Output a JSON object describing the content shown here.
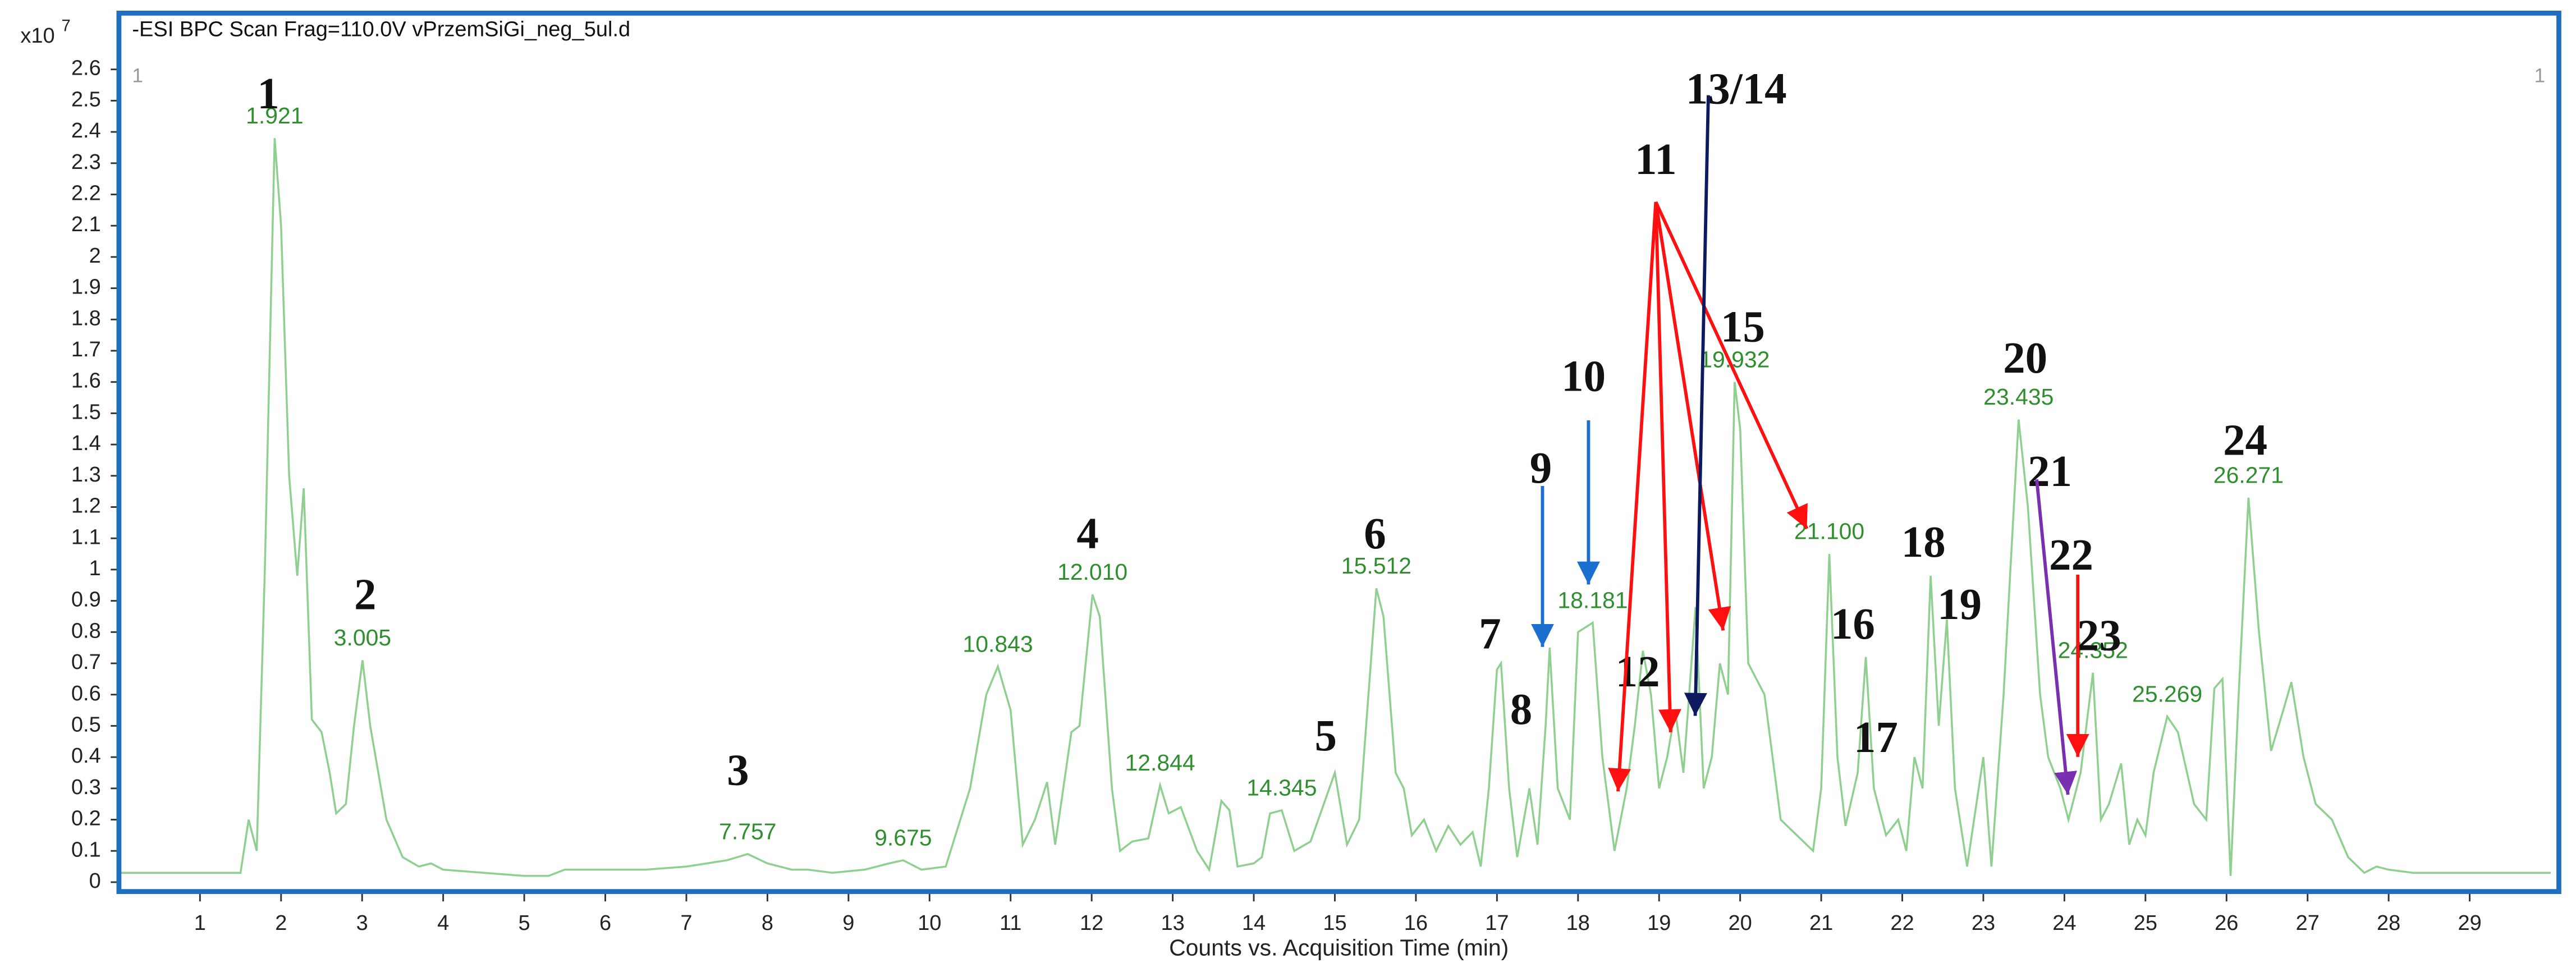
{
  "chart_data": {
    "type": "line",
    "title": "-ESI BPC Scan Frag=110.0V vPrzemSiGi_neg_5ul.d",
    "x_label": "Counts vs. Acquisition Time (min)",
    "y_multiplier": {
      "base": "x10",
      "exponent": "7"
    },
    "panel_markers": [
      "1",
      "1"
    ],
    "xlim": [
      0,
      30.1
    ],
    "ylim": [
      -0.03,
      2.78
    ],
    "xticks": [
      1,
      2,
      3,
      4,
      5,
      6,
      7,
      8,
      9,
      10,
      11,
      12,
      13,
      14,
      15,
      16,
      17,
      18,
      19,
      20,
      21,
      22,
      23,
      24,
      25,
      26,
      27,
      28,
      29
    ],
    "yticks": [
      0,
      0.1,
      0.2,
      0.3,
      0.4,
      0.5,
      0.6,
      0.7,
      0.8,
      0.9,
      1,
      1.1,
      1.2,
      1.3,
      1.4,
      1.5,
      1.6,
      1.7,
      1.8,
      1.9,
      2,
      2.1,
      2.2,
      2.3,
      2.4,
      2.5,
      2.6
    ],
    "series": [
      {
        "color": "#8fcf8f",
        "x": [
          0,
          1.5,
          1.6,
          1.7,
          1.8,
          1.921,
          2.0,
          2.1,
          2.2,
          2.28,
          2.38,
          2.5,
          2.6,
          2.68,
          2.8,
          2.9,
          3.005,
          3.1,
          3.3,
          3.5,
          3.7,
          3.85,
          4.0,
          4.5,
          5.0,
          5.3,
          5.5,
          6.0,
          6.5,
          7.0,
          7.5,
          7.757,
          8.0,
          8.3,
          8.5,
          8.8,
          9.2,
          9.5,
          9.675,
          9.9,
          10.2,
          10.5,
          10.7,
          10.843,
          11.0,
          11.15,
          11.3,
          11.45,
          11.55,
          11.75,
          11.85,
          12.01,
          12.1,
          12.25,
          12.35,
          12.5,
          12.7,
          12.844,
          12.95,
          13.1,
          13.3,
          13.45,
          13.6,
          13.7,
          13.8,
          14.0,
          14.1,
          14.2,
          14.345,
          14.5,
          14.7,
          14.85,
          15.0,
          15.15,
          15.3,
          15.512,
          15.6,
          15.75,
          15.85,
          15.95,
          16.1,
          16.25,
          16.4,
          16.55,
          16.7,
          16.8,
          16.9,
          17.0,
          17.05,
          17.15,
          17.25,
          17.4,
          17.5,
          17.6,
          17.65,
          17.75,
          17.9,
          18.0,
          18.181,
          18.3,
          18.45,
          18.6,
          18.7,
          18.8,
          18.9,
          19.0,
          19.1,
          19.2,
          19.3,
          19.45,
          19.55,
          19.65,
          19.75,
          19.85,
          19.932,
          20.0,
          20.1,
          20.3,
          20.5,
          20.7,
          20.9,
          21.0,
          21.1,
          21.2,
          21.3,
          21.45,
          21.55,
          21.65,
          21.8,
          21.95,
          22.05,
          22.15,
          22.25,
          22.35,
          22.45,
          22.55,
          22.65,
          22.8,
          23.0,
          23.1,
          23.25,
          23.435,
          23.55,
          23.7,
          23.8,
          23.95,
          24.05,
          24.2,
          24.352,
          24.45,
          24.55,
          24.7,
          24.8,
          24.9,
          25.0,
          25.1,
          25.269,
          25.4,
          25.6,
          25.75,
          25.85,
          25.95,
          26.05,
          26.15,
          26.271,
          26.4,
          26.55,
          26.7,
          26.8,
          26.95,
          27.1,
          27.3,
          27.5,
          27.7,
          27.85,
          28.0,
          28.3,
          30.0
        ],
        "values": [
          0.03,
          0.03,
          0.2,
          0.1,
          1.0,
          2.38,
          2.1,
          1.3,
          0.98,
          1.26,
          0.52,
          0.48,
          0.35,
          0.22,
          0.25,
          0.5,
          0.71,
          0.5,
          0.2,
          0.08,
          0.05,
          0.06,
          0.04,
          0.03,
          0.02,
          0.02,
          0.04,
          0.04,
          0.04,
          0.05,
          0.07,
          0.09,
          0.06,
          0.04,
          0.04,
          0.03,
          0.04,
          0.06,
          0.07,
          0.04,
          0.05,
          0.3,
          0.6,
          0.69,
          0.55,
          0.12,
          0.2,
          0.32,
          0.12,
          0.48,
          0.5,
          0.92,
          0.85,
          0.3,
          0.1,
          0.13,
          0.14,
          0.31,
          0.22,
          0.24,
          0.1,
          0.04,
          0.26,
          0.23,
          0.05,
          0.06,
          0.08,
          0.22,
          0.23,
          0.1,
          0.13,
          0.24,
          0.35,
          0.12,
          0.2,
          0.94,
          0.85,
          0.35,
          0.3,
          0.15,
          0.2,
          0.1,
          0.18,
          0.12,
          0.16,
          0.05,
          0.3,
          0.68,
          0.7,
          0.3,
          0.08,
          0.3,
          0.12,
          0.5,
          0.75,
          0.3,
          0.2,
          0.8,
          0.83,
          0.4,
          0.1,
          0.3,
          0.5,
          0.74,
          0.6,
          0.3,
          0.4,
          0.55,
          0.35,
          0.88,
          0.3,
          0.4,
          0.7,
          0.6,
          1.6,
          1.45,
          0.7,
          0.6,
          0.2,
          0.15,
          0.1,
          0.3,
          1.05,
          0.4,
          0.18,
          0.35,
          0.72,
          0.3,
          0.15,
          0.2,
          0.1,
          0.4,
          0.3,
          0.98,
          0.5,
          0.84,
          0.3,
          0.05,
          0.4,
          0.05,
          0.6,
          1.48,
          1.2,
          0.6,
          0.4,
          0.3,
          0.2,
          0.35,
          0.67,
          0.2,
          0.25,
          0.38,
          0.12,
          0.2,
          0.15,
          0.35,
          0.53,
          0.48,
          0.25,
          0.2,
          0.62,
          0.65,
          0.02,
          0.6,
          1.23,
          0.8,
          0.42,
          0.55,
          0.64,
          0.4,
          0.25,
          0.2,
          0.08,
          0.03,
          0.05,
          0.04,
          0.03,
          0.03
        ]
      }
    ],
    "peak_labels": [
      {
        "label": "1.921",
        "x": 1.921,
        "y": 2.38
      },
      {
        "label": "3.005",
        "x": 3.005,
        "y": 0.71
      },
      {
        "label": "7.757",
        "x": 7.757,
        "y": 0.09
      },
      {
        "label": "9.675",
        "x": 9.675,
        "y": 0.07
      },
      {
        "label": "10.843",
        "x": 10.843,
        "y": 0.69
      },
      {
        "label": "12.010",
        "x": 12.01,
        "y": 0.92
      },
      {
        "label": "12.844",
        "x": 12.844,
        "y": 0.31
      },
      {
        "label": "14.345",
        "x": 14.345,
        "y": 0.23
      },
      {
        "label": "15.512",
        "x": 15.512,
        "y": 0.94
      },
      {
        "label": "18.181",
        "x": 18.181,
        "y": 0.83
      },
      {
        "label": "19.932",
        "x": 19.932,
        "y": 1.6
      },
      {
        "label": "21.100",
        "x": 21.1,
        "y": 1.05
      },
      {
        "label": "23.435",
        "x": 23.435,
        "y": 1.48
      },
      {
        "label": "24.352",
        "x": 24.352,
        "y": 0.67
      },
      {
        "label": "25.269",
        "x": 25.269,
        "y": 0.53
      },
      {
        "label": "26.271",
        "x": 26.271,
        "y": 1.23
      }
    ],
    "peak_numbers": [
      "1",
      "2",
      "3",
      "4",
      "5",
      "6",
      "7",
      "8",
      "9",
      "10",
      "11",
      "12",
      "13/14",
      "15",
      "16",
      "17",
      "18",
      "19",
      "20",
      "21",
      "22",
      "23",
      "24"
    ]
  }
}
